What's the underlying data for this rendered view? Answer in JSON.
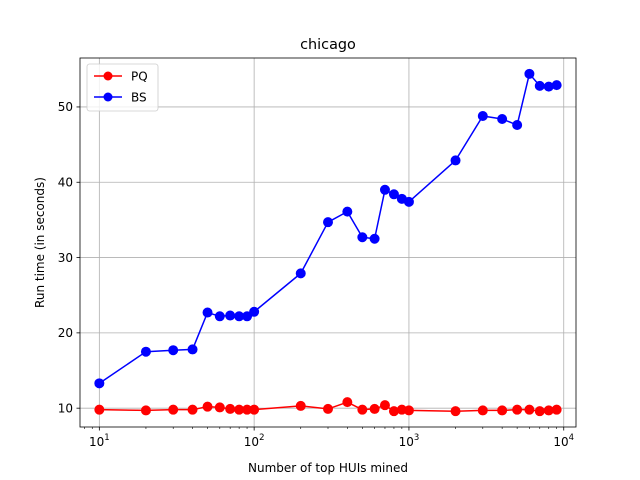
{
  "chart_data": {
    "type": "line",
    "title": "chicago",
    "xlabel": "Number of top HUIs mined",
    "ylabel": "Run time (in seconds)",
    "xscale": "log",
    "xlim": [
      7.5,
      12000
    ],
    "ylim": [
      7.5,
      56.5
    ],
    "xticks": [
      {
        "value": 10,
        "base": "10",
        "exp": "1"
      },
      {
        "value": 100,
        "base": "10",
        "exp": "2"
      },
      {
        "value": 1000,
        "base": "10",
        "exp": "3"
      },
      {
        "value": 10000,
        "base": "10",
        "exp": "4"
      }
    ],
    "yticks": [
      {
        "value": 10,
        "label": "10"
      },
      {
        "value": 20,
        "label": "20"
      },
      {
        "value": 30,
        "label": "30"
      },
      {
        "value": 40,
        "label": "40"
      },
      {
        "value": 50,
        "label": "50"
      }
    ],
    "grid": true,
    "legend_position": "top-left",
    "x": [
      10,
      20,
      30,
      40,
      50,
      60,
      70,
      80,
      90,
      100,
      200,
      300,
      400,
      500,
      600,
      700,
      800,
      900,
      1000,
      2000,
      3000,
      4000,
      5000,
      6000,
      7000,
      8000,
      9000
    ],
    "series": [
      {
        "name": "PQ",
        "color": "#ff0000",
        "values": [
          9.8,
          9.7,
          9.8,
          9.8,
          10.2,
          10.1,
          9.9,
          9.8,
          9.8,
          9.8,
          10.3,
          9.9,
          10.8,
          9.8,
          9.9,
          10.4,
          9.6,
          9.8,
          9.7,
          9.6,
          9.7,
          9.7,
          9.8,
          9.8,
          9.6,
          9.7,
          9.8
        ]
      },
      {
        "name": "BS",
        "color": "#0000ff",
        "values": [
          13.3,
          17.5,
          17.7,
          17.8,
          22.7,
          22.2,
          22.3,
          22.2,
          22.2,
          22.8,
          27.9,
          34.7,
          36.1,
          32.7,
          32.5,
          39.0,
          38.4,
          37.8,
          37.4,
          42.9,
          48.8,
          48.4,
          47.6,
          54.4,
          52.8,
          52.7,
          52.9
        ]
      }
    ]
  }
}
